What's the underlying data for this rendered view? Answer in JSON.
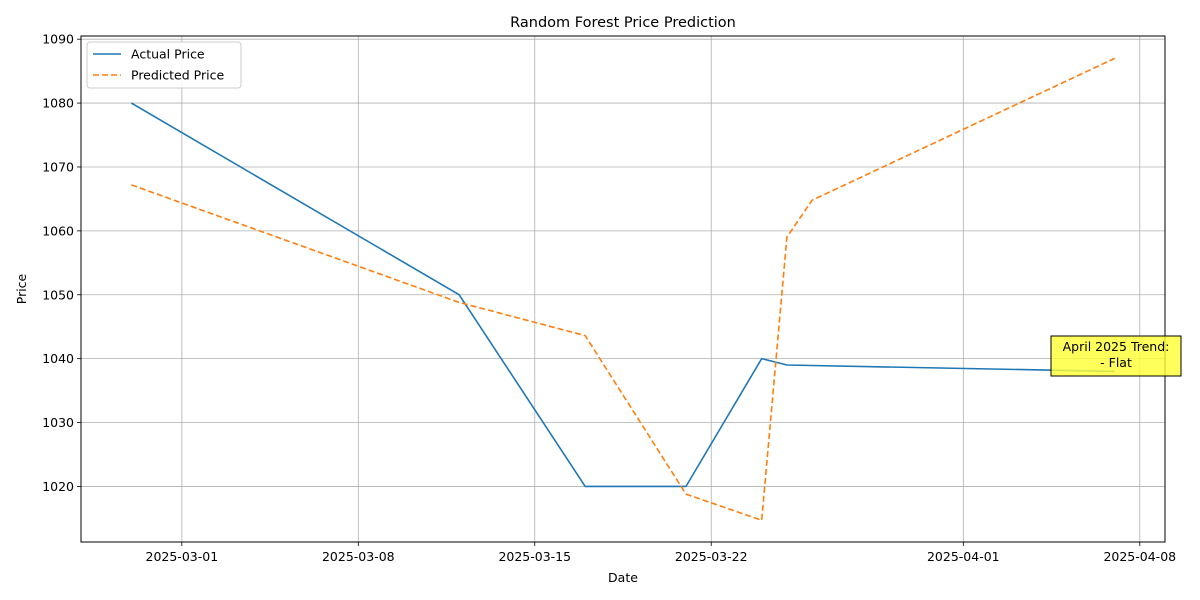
{
  "chart_data": {
    "type": "line",
    "title": "Random Forest Price Prediction",
    "xlabel": "Date",
    "ylabel": "Price",
    "xlim": [
      "2025-02-25",
      "2025-04-09"
    ],
    "ylim": [
      1011.3,
      1090.5
    ],
    "x_ticks": [
      "2025-03-01",
      "2025-03-08",
      "2025-03-15",
      "2025-03-22",
      "2025-04-01",
      "2025-04-08"
    ],
    "y_ticks": [
      1020,
      1030,
      1040,
      1050,
      1060,
      1070,
      1080,
      1090
    ],
    "grid": true,
    "legend": "top-left",
    "series": [
      {
        "name": "Actual Price",
        "color": "#1f77b4",
        "style": "solid",
        "points": [
          {
            "x": "2025-02-27",
            "y": 1080
          },
          {
            "x": "2025-03-12",
            "y": 1050
          },
          {
            "x": "2025-03-17",
            "y": 1020
          },
          {
            "x": "2025-03-21",
            "y": 1020
          },
          {
            "x": "2025-03-24",
            "y": 1040
          },
          {
            "x": "2025-03-25",
            "y": 1039
          },
          {
            "x": "2025-04-07",
            "y": 1038
          }
        ]
      },
      {
        "name": "Predicted Price",
        "color": "#ff7f0e",
        "style": "dashed",
        "points": [
          {
            "x": "2025-02-27",
            "y": 1067.2
          },
          {
            "x": "2025-03-12",
            "y": 1048.8
          },
          {
            "x": "2025-03-17",
            "y": 1043.6
          },
          {
            "x": "2025-03-21",
            "y": 1018.8
          },
          {
            "x": "2025-03-24",
            "y": 1014.7
          },
          {
            "x": "2025-03-25",
            "y": 1059.0
          },
          {
            "x": "2025-03-26",
            "y": 1064.8
          },
          {
            "x": "2025-04-07",
            "y": 1087.0
          }
        ]
      }
    ],
    "annotation": {
      "text_line1": "April 2025 Trend:",
      "text_line2": "- Flat",
      "x": "2025-04-06",
      "y": 1040,
      "background": "#ffff33"
    }
  }
}
